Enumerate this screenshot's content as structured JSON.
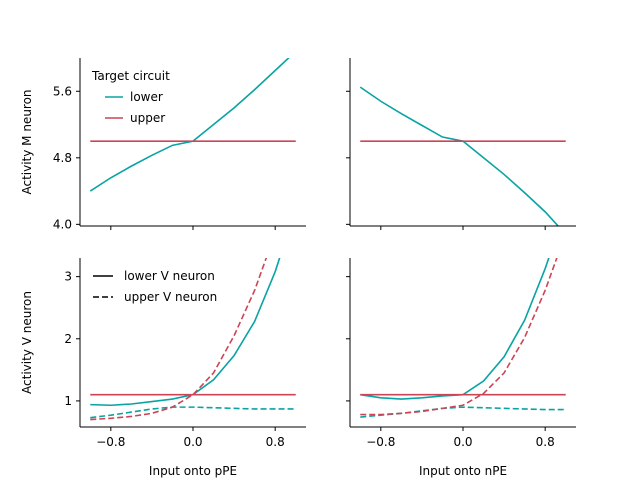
{
  "chart_data": [
    {
      "type": "line",
      "panel": "top-left",
      "ylabel": "Activity M neuron",
      "xlabel": "",
      "yticks": [
        4.0,
        4.8,
        5.6
      ],
      "ytick_labels": [
        "4.0",
        "4.8",
        "5.6"
      ],
      "ylim": [
        3.98,
        6.0
      ],
      "xlim": [
        -1.1,
        1.1
      ],
      "xticks": [
        -0.8,
        0.0,
        0.8
      ],
      "xtick_labels": [],
      "show_ytick_labels": true,
      "legend": {
        "title": "Target circuit",
        "placement": "top-left",
        "entries": [
          {
            "label": "lower",
            "color": "#0aa3a3"
          },
          {
            "label": "upper",
            "color": "#cc4455"
          }
        ]
      },
      "series": [
        {
          "color": "#0aa3a3",
          "dash": "solid",
          "x": [
            -1.0,
            -0.8,
            -0.6,
            -0.4,
            -0.2,
            0.0,
            0.2,
            0.4,
            0.6,
            0.8,
            1.0
          ],
          "y": [
            4.4,
            4.56,
            4.7,
            4.83,
            4.95,
            5.0,
            5.2,
            5.4,
            5.62,
            5.85,
            6.08
          ]
        },
        {
          "color": "#cc4455",
          "dash": "solid",
          "x": [
            -1.0,
            1.0
          ],
          "y": [
            5.0,
            5.0
          ]
        }
      ]
    },
    {
      "type": "line",
      "panel": "top-right",
      "ylabel": "",
      "xlabel": "",
      "yticks": [
        4.0,
        4.8,
        5.6
      ],
      "ytick_labels": [],
      "ylim": [
        3.98,
        6.0
      ],
      "xlim": [
        -1.1,
        1.1
      ],
      "xticks": [
        -0.8,
        0.0,
        0.8
      ],
      "xtick_labels": [],
      "show_ytick_labels": false,
      "series": [
        {
          "color": "#0aa3a3",
          "dash": "solid",
          "x": [
            -1.0,
            -0.8,
            -0.6,
            -0.4,
            -0.2,
            0.0,
            0.2,
            0.4,
            0.6,
            0.8,
            1.0
          ],
          "y": [
            5.65,
            5.48,
            5.33,
            5.19,
            5.05,
            5.0,
            4.8,
            4.6,
            4.38,
            4.15,
            3.88
          ]
        },
        {
          "color": "#cc4455",
          "dash": "solid",
          "x": [
            -1.0,
            1.0
          ],
          "y": [
            5.0,
            5.0
          ]
        }
      ]
    },
    {
      "type": "line",
      "panel": "bottom-left",
      "ylabel": "Activity V neuron",
      "xlabel": "Input onto pPE",
      "yticks": [
        1,
        2,
        3
      ],
      "ytick_labels": [
        "1",
        "2",
        "3"
      ],
      "ylim": [
        0.58,
        3.3
      ],
      "xlim": [
        -1.1,
        1.1
      ],
      "xticks": [
        -0.8,
        0.0,
        0.8
      ],
      "xtick_labels": [
        "−0.8",
        "0.0",
        "0.8"
      ],
      "show_ytick_labels": true,
      "legend": {
        "title": "",
        "placement": "top-left",
        "entries": [
          {
            "label": "lower V neuron",
            "color": "#000000",
            "dash": "solid"
          },
          {
            "label": "upper V neuron",
            "color": "#000000",
            "dash": "dashed"
          }
        ]
      },
      "series": [
        {
          "color": "#0aa3a3",
          "dash": "solid",
          "x": [
            -1.0,
            -0.8,
            -0.6,
            -0.4,
            -0.2,
            0.0,
            0.2,
            0.4,
            0.6,
            0.8,
            1.0
          ],
          "y": [
            0.94,
            0.93,
            0.95,
            0.99,
            1.03,
            1.1,
            1.34,
            1.73,
            2.28,
            3.08,
            4.1
          ]
        },
        {
          "color": "#0aa3a3",
          "dash": "dashed",
          "x": [
            -1.0,
            -0.8,
            -0.6,
            -0.4,
            -0.2,
            0.0,
            0.2,
            0.4,
            0.6,
            0.8,
            1.0
          ],
          "y": [
            0.73,
            0.77,
            0.82,
            0.87,
            0.9,
            0.9,
            0.89,
            0.88,
            0.87,
            0.87,
            0.87
          ]
        },
        {
          "color": "#cc4455",
          "dash": "dashed",
          "x": [
            -1.0,
            -0.8,
            -0.6,
            -0.4,
            -0.2,
            0.0,
            0.2,
            0.4,
            0.6,
            0.8,
            1.0
          ],
          "y": [
            0.7,
            0.72,
            0.75,
            0.8,
            0.9,
            1.1,
            1.45,
            2.05,
            2.78,
            3.7,
            4.7
          ]
        },
        {
          "color": "#cc4455",
          "dash": "solid",
          "x": [
            -1.0,
            1.0
          ],
          "y": [
            1.1,
            1.1
          ]
        }
      ]
    },
    {
      "type": "line",
      "panel": "bottom-right",
      "ylabel": "",
      "xlabel": "Input onto nPE",
      "yticks": [
        1,
        2,
        3
      ],
      "ytick_labels": [],
      "ylim": [
        0.58,
        3.3
      ],
      "xlim": [
        -1.1,
        1.1
      ],
      "xticks": [
        -0.8,
        0.0,
        0.8
      ],
      "xtick_labels": [
        "−0.8",
        "0.0",
        "0.8"
      ],
      "show_ytick_labels": false,
      "series": [
        {
          "color": "#0aa3a3",
          "dash": "solid",
          "x": [
            -1.0,
            -0.8,
            -0.6,
            -0.4,
            -0.2,
            0.0,
            0.2,
            0.4,
            0.6,
            0.8,
            1.0
          ],
          "y": [
            1.1,
            1.05,
            1.03,
            1.05,
            1.08,
            1.1,
            1.32,
            1.71,
            2.3,
            3.13,
            4.1
          ]
        },
        {
          "color": "#0aa3a3",
          "dash": "dashed",
          "x": [
            -1.0,
            -0.8,
            -0.6,
            -0.4,
            -0.2,
            0.0,
            0.2,
            0.4,
            0.6,
            0.8,
            1.0
          ],
          "y": [
            0.74,
            0.77,
            0.8,
            0.84,
            0.88,
            0.9,
            0.89,
            0.88,
            0.87,
            0.86,
            0.86
          ]
        },
        {
          "color": "#cc4455",
          "dash": "dashed",
          "x": [
            -1.0,
            -0.8,
            -0.6,
            -0.4,
            -0.2,
            0.0,
            0.2,
            0.4,
            0.6,
            0.8,
            1.0
          ],
          "y": [
            0.78,
            0.78,
            0.8,
            0.83,
            0.88,
            0.93,
            1.12,
            1.45,
            2.02,
            2.78,
            3.7
          ]
        },
        {
          "color": "#cc4455",
          "dash": "solid",
          "x": [
            -1.0,
            1.0
          ],
          "y": [
            1.1,
            1.1
          ]
        }
      ]
    }
  ]
}
